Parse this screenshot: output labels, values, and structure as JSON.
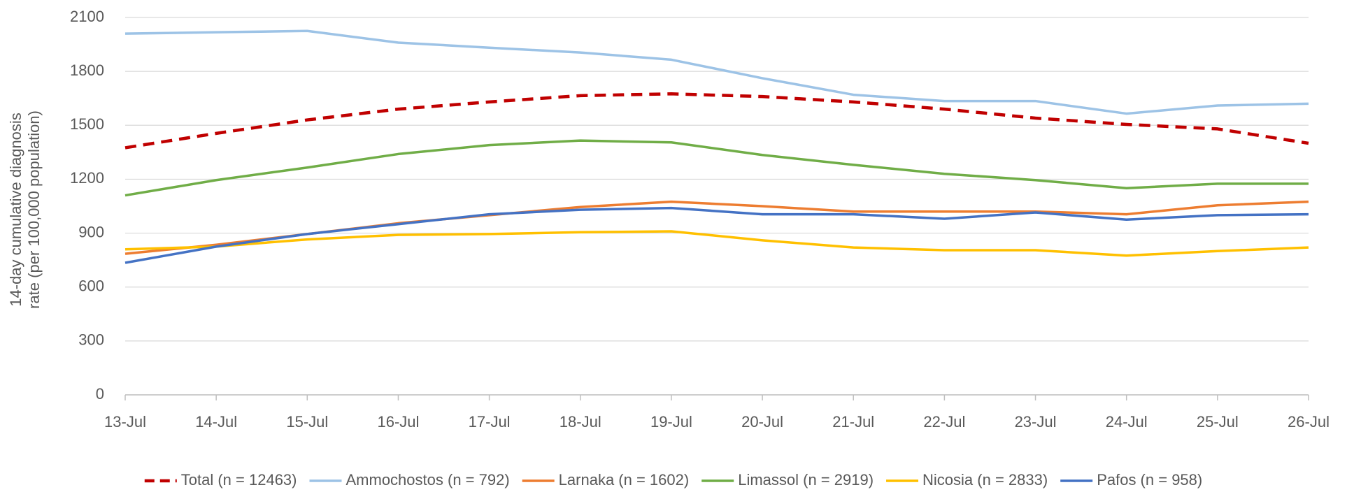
{
  "chart_data": {
    "type": "line",
    "y_label": "14-day cumulative diagnosis rate (per 100,000 population)",
    "categories": [
      "13-Jul",
      "14-Jul",
      "15-Jul",
      "16-Jul",
      "17-Jul",
      "18-Jul",
      "19-Jul",
      "20-Jul",
      "21-Jul",
      "22-Jul",
      "23-Jul",
      "24-Jul",
      "25-Jul",
      "26-Jul"
    ],
    "ylim": [
      0,
      2100
    ],
    "yticks": [
      0,
      300,
      600,
      900,
      1200,
      1500,
      1800,
      2100
    ],
    "grid": true,
    "legend": "bottom",
    "series": [
      {
        "name": "Total (n = 12463)",
        "color": "#c00000",
        "dashed": true,
        "values": [
          1375,
          1455,
          1530,
          1590,
          1630,
          1665,
          1675,
          1660,
          1630,
          1590,
          1540,
          1505,
          1480,
          1400
        ]
      },
      {
        "name": "Ammochostos (n = 792)",
        "color": "#9dc3e6",
        "values": [
          2010,
          2018,
          2025,
          1960,
          1932,
          1905,
          1865,
          1762,
          1670,
          1635,
          1635,
          1565,
          1610,
          1620
        ]
      },
      {
        "name": "Larnaka (n = 1602)",
        "color": "#ed7d31",
        "values": [
          785,
          835,
          895,
          955,
          1000,
          1045,
          1075,
          1050,
          1020,
          1020,
          1020,
          1005,
          1055,
          1075
        ]
      },
      {
        "name": "Limassol (n = 2919)",
        "color": "#70ad47",
        "values": [
          1110,
          1195,
          1265,
          1340,
          1390,
          1415,
          1405,
          1335,
          1280,
          1230,
          1195,
          1150,
          1175,
          1175
        ]
      },
      {
        "name": "Nicosia (n = 2833)",
        "color": "#ffc000",
        "values": [
          810,
          825,
          865,
          890,
          895,
          905,
          910,
          860,
          820,
          805,
          805,
          775,
          800,
          820
        ]
      },
      {
        "name": "Pafos (n = 958)",
        "color": "#4472c4",
        "values": [
          735,
          825,
          895,
          950,
          1005,
          1030,
          1040,
          1005,
          1005,
          980,
          1015,
          975,
          1000,
          1005
        ]
      }
    ]
  }
}
